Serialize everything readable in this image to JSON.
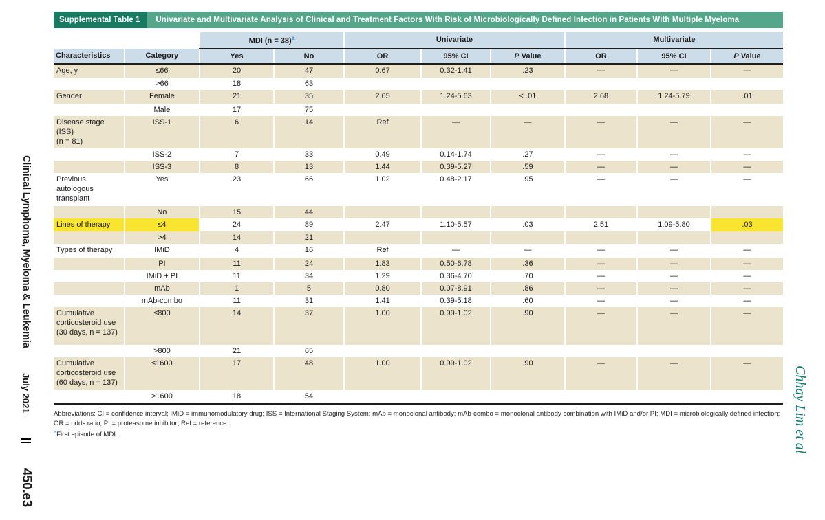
{
  "colors": {
    "green_dark": "#177a61",
    "green_mid": "#56a68c",
    "header_blue": "#cddce9",
    "row_tan": "#ece3cd",
    "highlight_yellow": "#f9e530",
    "rule_dark": "#1c1c1c",
    "footnote_marker_blue": "#2d74b5",
    "author_teal": "#11796e"
  },
  "sidebar_left": {
    "journal": "Clinical Lymphoma, Myeloma & Leukemia",
    "issue": "July 2021",
    "page": "450.e3"
  },
  "sidebar_right": {
    "authors": "Chhay Lim et al"
  },
  "table": {
    "label": "Supplemental Table 1",
    "title": "Univariate and Multivariate Analysis of Clinical and Treatment Factors With Risk of Microbiologically Defined Infection in Patients With Multiple Myeloma",
    "groups": {
      "mdi": "MDI (n = 38)",
      "mdi_sup": "a",
      "univariate": "Univariate",
      "multivariate": "Multivariate"
    },
    "columns": [
      {
        "name": "col-characteristics",
        "label": "Characteristics",
        "align": "left",
        "italic": false
      },
      {
        "name": "col-category",
        "label": "Category",
        "align": "center",
        "italic": false
      },
      {
        "name": "col-mdi-yes",
        "label": "Yes",
        "align": "center",
        "italic": false
      },
      {
        "name": "col-mdi-no",
        "label": "No",
        "align": "center",
        "italic": false
      },
      {
        "name": "col-uni-or",
        "label": "OR",
        "align": "center",
        "italic": false
      },
      {
        "name": "col-uni-ci",
        "label": "95% CI",
        "align": "center",
        "italic": false
      },
      {
        "name": "col-uni-p",
        "label": "P Value",
        "align": "center",
        "italic": true
      },
      {
        "name": "col-multi-or",
        "label": "OR",
        "align": "center",
        "italic": false
      },
      {
        "name": "col-multi-ci",
        "label": "95% CI",
        "align": "center",
        "italic": false
      },
      {
        "name": "col-multi-p",
        "label": "P Value",
        "align": "center",
        "italic": true
      }
    ],
    "rows": [
      {
        "shade": "tan",
        "cells": [
          "Age, y",
          "≤66",
          "20",
          "47",
          "0.67",
          "0.32-1.41",
          ".23",
          "—",
          "—",
          "—"
        ]
      },
      {
        "shade": "white",
        "cells": [
          "",
          ">66",
          "18",
          "63",
          "",
          "",
          "",
          "",
          "",
          ""
        ]
      },
      {
        "shade": "tan",
        "cells": [
          "Gender",
          "Female",
          "21",
          "35",
          "2.65",
          "1.24-5.63",
          "< .01",
          "2.68",
          "1.24-5.79",
          ".01"
        ]
      },
      {
        "shade": "white",
        "cells": [
          "",
          "Male",
          "17",
          "75",
          "",
          "",
          "",
          "",
          "",
          ""
        ]
      },
      {
        "shade": "tan",
        "h": 43,
        "cells": [
          "Disease stage (ISS)\n(n = 81)",
          "ISS-1",
          "6",
          "14",
          "Ref",
          "—",
          "—",
          "—",
          "—",
          "—"
        ]
      },
      {
        "shade": "white",
        "cells": [
          "",
          "ISS-2",
          "7",
          "33",
          "0.49",
          "0.14-1.74",
          ".27",
          "—",
          "—",
          "—"
        ]
      },
      {
        "shade": "tan",
        "cells": [
          "",
          "ISS-3",
          "8",
          "13",
          "1.44",
          "0.39-5.27",
          ".59",
          "—",
          "—",
          "—"
        ]
      },
      {
        "shade": "white",
        "cells": [
          "Previous autologous\ntransplant",
          "Yes",
          "23",
          "66",
          "1.02",
          "0.48-2.17",
          ".95",
          "—",
          "—",
          "—"
        ]
      },
      {
        "shade": "tan",
        "cells": [
          "",
          "No",
          "15",
          "44",
          "",
          "",
          "",
          "",
          "",
          ""
        ]
      },
      {
        "shade": "white",
        "highlight": [
          0,
          1,
          9
        ],
        "cells": [
          "Lines of therapy",
          "≤4",
          "24",
          "89",
          "2.47",
          "1.10-5.57",
          ".03",
          "2.51",
          "1.09-5.80",
          ".03"
        ]
      },
      {
        "shade": "tan",
        "cells": [
          "",
          ">4",
          "14",
          "21",
          "",
          "",
          "",
          "",
          "",
          ""
        ]
      },
      {
        "shade": "white",
        "cells": [
          "Types of therapy",
          "IMiD",
          "4",
          "16",
          "Ref",
          "—",
          "—",
          "—",
          "—",
          "—"
        ]
      },
      {
        "shade": "tan",
        "cells": [
          "",
          "PI",
          "11",
          "24",
          "1.83",
          "0.50-6.78",
          ".36",
          "—",
          "—",
          "—"
        ]
      },
      {
        "shade": "white",
        "cells": [
          "",
          "IMiD + PI",
          "11",
          "34",
          "1.29",
          "0.36-4.70",
          ".70",
          "—",
          "—",
          "—"
        ]
      },
      {
        "shade": "tan",
        "cells": [
          "",
          "mAb",
          "1",
          "5",
          "0.80",
          "0.07-8.91",
          ".86",
          "—",
          "—",
          "—"
        ]
      },
      {
        "shade": "white",
        "cells": [
          "",
          "mAb-combo",
          "11",
          "31",
          "1.41",
          "0.39-5.18",
          ".60",
          "—",
          "—",
          "—"
        ]
      },
      {
        "shade": "tan",
        "h": 55,
        "cells": [
          "Cumulative\ncorticosteroid use\n(30 days, n = 137)",
          "≤800",
          "14",
          "37",
          "1.00",
          "0.99-1.02",
          ".90",
          "—",
          "—",
          "—"
        ]
      },
      {
        "shade": "white",
        "cells": [
          "",
          ">800",
          "21",
          "65",
          "",
          "",
          "",
          "",
          "",
          ""
        ]
      },
      {
        "shade": "tan",
        "h": 48,
        "cells": [
          "Cumulative\ncorticosteroid use\n(60 days, n = 137)",
          "≤1600",
          "17",
          "48",
          "1.00",
          "0.99-1.02",
          ".90",
          "—",
          "—",
          "—"
        ]
      },
      {
        "shade": "white",
        "cells": [
          "",
          ">1600",
          "18",
          "54",
          "",
          "",
          "",
          "",
          "",
          ""
        ]
      }
    ],
    "footnotes": {
      "abbreviations": "Abbreviations: CI = confidence interval; IMiD = immunomodulatory drug; ISS = International Staging System; mAb = monoclonal antibody; mAb-combo = monoclonal antibody combination with IMiD and/or PI; MDI = microbiologically defined infection; OR = odds ratio; PI = proteasome inhibitor; Ref = reference.",
      "a_marker": "a",
      "a_text": "First episode of MDI."
    }
  }
}
